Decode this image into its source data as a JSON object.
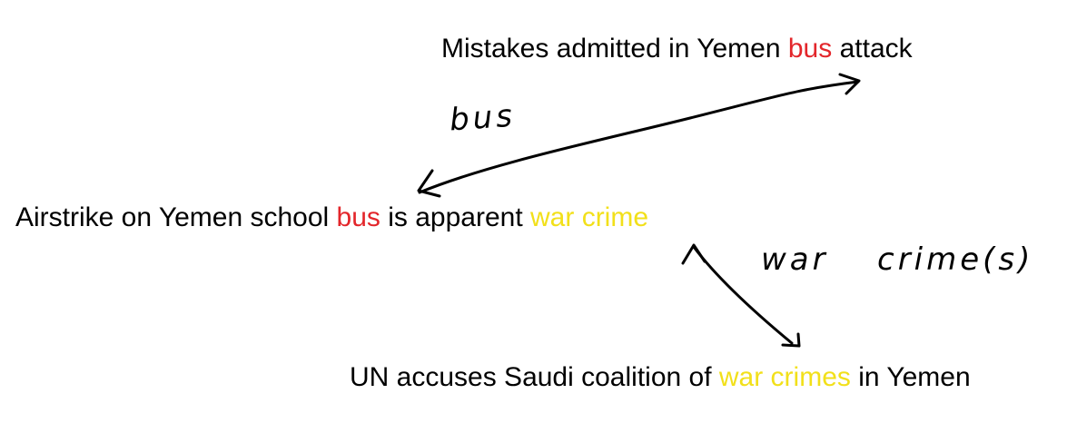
{
  "headlines": [
    {
      "id": "mistakes",
      "parts": [
        {
          "text": "Mistakes admitted in Yemen ",
          "highlight": "none"
        },
        {
          "text": "bus",
          "highlight": "red"
        },
        {
          "text": " attack",
          "highlight": "none"
        }
      ]
    },
    {
      "id": "airstrike",
      "parts": [
        {
          "text": "Airstrike on Yemen school ",
          "highlight": "none"
        },
        {
          "text": "bus",
          "highlight": "red"
        },
        {
          "text": " is apparent ",
          "highlight": "none"
        },
        {
          "text": "war crime",
          "highlight": "yellow"
        }
      ]
    },
    {
      "id": "un",
      "parts": [
        {
          "text": "UN accuses Saudi coalition of ",
          "highlight": "none"
        },
        {
          "text": "war crimes",
          "highlight": "yellow"
        },
        {
          "text": " in Yemen",
          "highlight": "none"
        }
      ]
    }
  ],
  "annotations": {
    "bus_link": "bus",
    "war_link_word1": "war",
    "war_link_word2": "crime(s)"
  },
  "colors": {
    "red": "#e3262b",
    "yellow": "#f2e01a",
    "ink": "#000000"
  }
}
